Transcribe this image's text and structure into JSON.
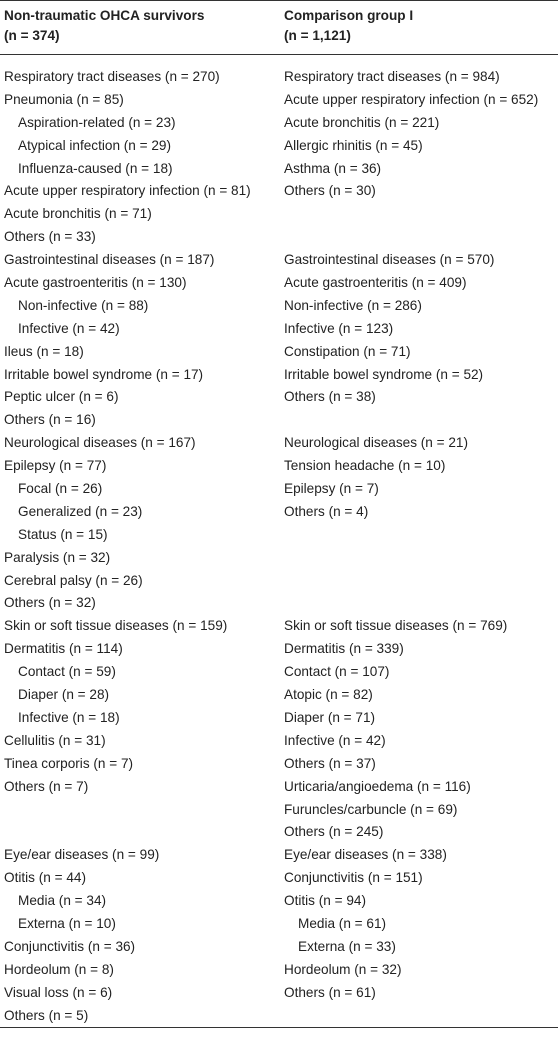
{
  "table": {
    "headers": [
      [
        "Non-traumatic OHCA survivors",
        "(n = 374)"
      ],
      [
        "Comparison group I",
        "(n = 1,121)"
      ]
    ],
    "groups": [
      {
        "left": [
          "Respiratory tract diseases (n = 270)",
          {
            "text": "Pneumonia (n = 85)",
            "sub": [
              "Aspiration-related (n = 23)",
              "Atypical infection (n = 29)",
              "Influenza-caused (n = 18)"
            ]
          },
          "Acute upper respiratory infection (n = 81)",
          "Acute bronchitis (n = 71)",
          "Others (n = 33)"
        ],
        "right": [
          "Respiratory tract diseases (n = 984)",
          "Acute upper respiratory infection (n = 652)",
          "Acute bronchitis (n = 221)",
          "Allergic rhinitis (n = 45)",
          "Asthma (n = 36)",
          "Others (n = 30)"
        ]
      },
      {
        "left": [
          "Gastrointestinal diseases (n = 187)",
          {
            "text": "Acute gastroenteritis (n = 130)",
            "sub": [
              "Non-infective (n = 88)",
              "Infective (n = 42)"
            ]
          },
          "Ileus (n = 18)",
          "Irritable bowel syndrome (n = 17)",
          "Peptic ulcer (n = 6)",
          "Others (n = 16)"
        ],
        "right": [
          "Gastrointestinal diseases (n = 570)",
          "Acute gastroenteritis (n = 409)",
          "Non-infective (n = 286)",
          "Infective (n = 123)",
          "Constipation (n = 71)",
          "Irritable bowel syndrome (n = 52)",
          "Others (n = 38)"
        ]
      },
      {
        "left": [
          "Neurological diseases (n = 167)",
          {
            "text": "Epilepsy (n = 77)",
            "sub": [
              "Focal (n = 26)",
              "Generalized (n = 23)",
              "Status (n = 15)"
            ]
          },
          "Paralysis (n = 32)",
          "Cerebral palsy (n = 26)",
          "Others (n = 32)"
        ],
        "right": [
          "Neurological diseases (n = 21)",
          "Tension headache (n = 10)",
          "Epilepsy (n = 7)",
          "Others (n = 4)"
        ]
      },
      {
        "left": [
          "Skin or soft tissue diseases (n = 159)",
          {
            "text": "Dermatitis (n = 114)",
            "sub": [
              "Contact (n = 59)",
              "Diaper (n = 28)",
              "Infective (n = 18)"
            ]
          },
          "Cellulitis (n = 31)",
          "Tinea corporis (n = 7)",
          "Others (n = 7)"
        ],
        "right": [
          "Skin or soft tissue diseases (n = 769)",
          "Dermatitis (n = 339)",
          "Contact (n = 107)",
          "Atopic (n = 82)",
          "Diaper (n = 71)",
          "Infective (n = 42)",
          "Others (n = 37)",
          "Urticaria/angioedema (n = 116)",
          "Furuncles/carbuncle (n = 69)",
          "Others (n = 245)"
        ]
      },
      {
        "left": [
          "Eye/ear diseases (n = 99)",
          {
            "text": "Otitis (n = 44)",
            "sub": [
              "Media (n = 34)",
              "Externa (n = 10)"
            ]
          },
          "Conjunctivitis (n = 36)",
          "Hordeolum (n = 8)",
          "Visual loss (n = 6)",
          "Others (n = 5)"
        ],
        "right": [
          "Eye/ear diseases (n = 338)",
          "Conjunctivitis (n = 151)",
          {
            "text": "Otitis (n = 94)",
            "sub": [
              "Media (n = 61)",
              "Externa (n = 33)"
            ]
          },
          "Hordeolum (n = 32)",
          "Others (n = 61)"
        ]
      }
    ]
  }
}
